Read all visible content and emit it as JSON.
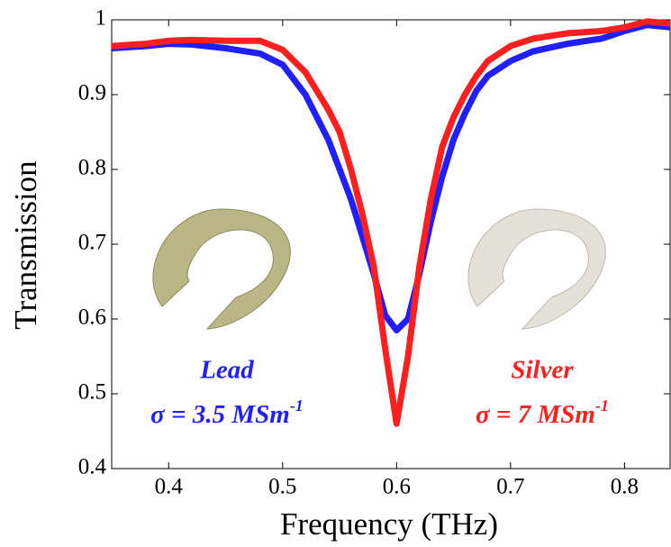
{
  "chart_data": {
    "type": "line",
    "x_label": "Frequency (THz)",
    "y_label": "Transmission",
    "x": [
      0.35,
      0.38,
      0.4,
      0.42,
      0.45,
      0.48,
      0.5,
      0.52,
      0.54,
      0.55,
      0.56,
      0.57,
      0.58,
      0.59,
      0.6,
      0.61,
      0.62,
      0.63,
      0.64,
      0.65,
      0.66,
      0.67,
      0.68,
      0.7,
      0.72,
      0.75,
      0.78,
      0.8,
      0.82,
      0.84
    ],
    "series": [
      {
        "name": "Lead",
        "color": "#1f1fff",
        "values": [
          0.962,
          0.965,
          0.968,
          0.967,
          0.962,
          0.955,
          0.94,
          0.9,
          0.84,
          0.8,
          0.76,
          0.71,
          0.66,
          0.605,
          0.585,
          0.6,
          0.66,
          0.73,
          0.79,
          0.84,
          0.875,
          0.905,
          0.925,
          0.945,
          0.958,
          0.968,
          0.975,
          0.985,
          0.993,
          0.99
        ]
      },
      {
        "name": "Silver",
        "color": "#ff1f1f",
        "values": [
          0.965,
          0.968,
          0.972,
          0.973,
          0.972,
          0.972,
          0.96,
          0.93,
          0.88,
          0.85,
          0.8,
          0.74,
          0.67,
          0.56,
          0.46,
          0.55,
          0.67,
          0.76,
          0.83,
          0.87,
          0.9,
          0.925,
          0.945,
          0.965,
          0.975,
          0.982,
          0.985,
          0.99,
          0.998,
          0.995
        ]
      }
    ],
    "annotations": [
      {
        "text": "σ = 3.5 MSm",
        "sup": "-1",
        "color": "#1f1fff"
      },
      {
        "text": "σ = 7 MSm",
        "sup": "-1",
        "color": "#ff1f1f"
      }
    ],
    "xlim": [
      0.35,
      0.84
    ],
    "ylim": [
      0.4,
      1
    ],
    "xticks": [
      0.4,
      0.5,
      0.6,
      0.7,
      0.8
    ],
    "yticks": [
      0.4,
      0.5,
      0.6,
      0.7,
      0.8,
      0.9,
      1
    ]
  }
}
